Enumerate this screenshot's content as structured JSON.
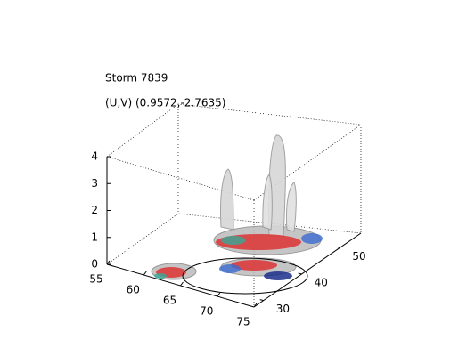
{
  "figure": {
    "title": "Storm 7839",
    "subtitle": "(U,V) (0.9572,-2.7635)",
    "z_axis": {
      "ticks": [
        "0",
        "1",
        "2",
        "3",
        "4"
      ]
    },
    "x_axis": {
      "ticks": [
        "55",
        "60",
        "65",
        "70",
        "75"
      ]
    },
    "y_axis": {
      "ticks": [
        "30",
        "40",
        "50"
      ]
    }
  }
}
